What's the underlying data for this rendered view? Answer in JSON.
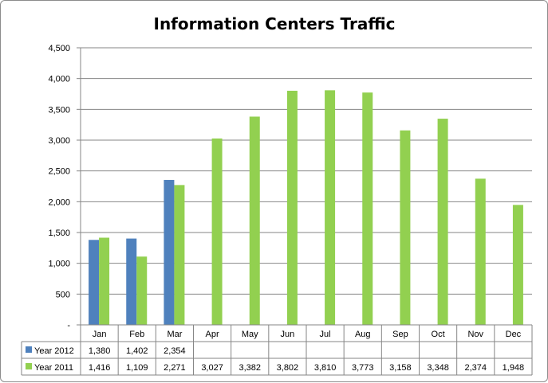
{
  "chart_data": {
    "type": "bar",
    "title": "Information Centers Traffic",
    "categories": [
      "Jan",
      "Feb",
      "Mar",
      "Apr",
      "May",
      "Jun",
      "Jul",
      "Aug",
      "Sep",
      "Oct",
      "Nov",
      "Dec"
    ],
    "series": [
      {
        "name": "Year 2012",
        "color": "#4f81bd",
        "values": [
          1380,
          1402,
          2354,
          null,
          null,
          null,
          null,
          null,
          null,
          null,
          null,
          null
        ],
        "labels": [
          "1,380",
          "1,402",
          "2,354",
          "",
          "",
          "",
          "",
          "",
          "",
          "",
          "",
          ""
        ]
      },
      {
        "name": "Year 2011",
        "color": "#92d050",
        "values": [
          1416,
          1109,
          2271,
          3027,
          3382,
          3802,
          3810,
          3773,
          3158,
          3348,
          2374,
          1948
        ],
        "labels": [
          "1,416",
          "1,109",
          "2,271",
          "3,027",
          "3,382",
          "3,802",
          "3,810",
          "3,773",
          "3,158",
          "3,348",
          "2,374",
          "1,948"
        ]
      }
    ],
    "ylim": [
      0,
      4500
    ],
    "ytick_values": [
      0,
      500,
      1000,
      1500,
      2000,
      2500,
      3000,
      3500,
      4000,
      4500
    ],
    "ytick_labels": [
      "-",
      "500",
      "1,000",
      "1,500",
      "2,000",
      "2,500",
      "3,000",
      "3,500",
      "4,000",
      "4,500"
    ],
    "grid": true,
    "legend": "data-table-below",
    "xlabel": "",
    "ylabel": ""
  }
}
